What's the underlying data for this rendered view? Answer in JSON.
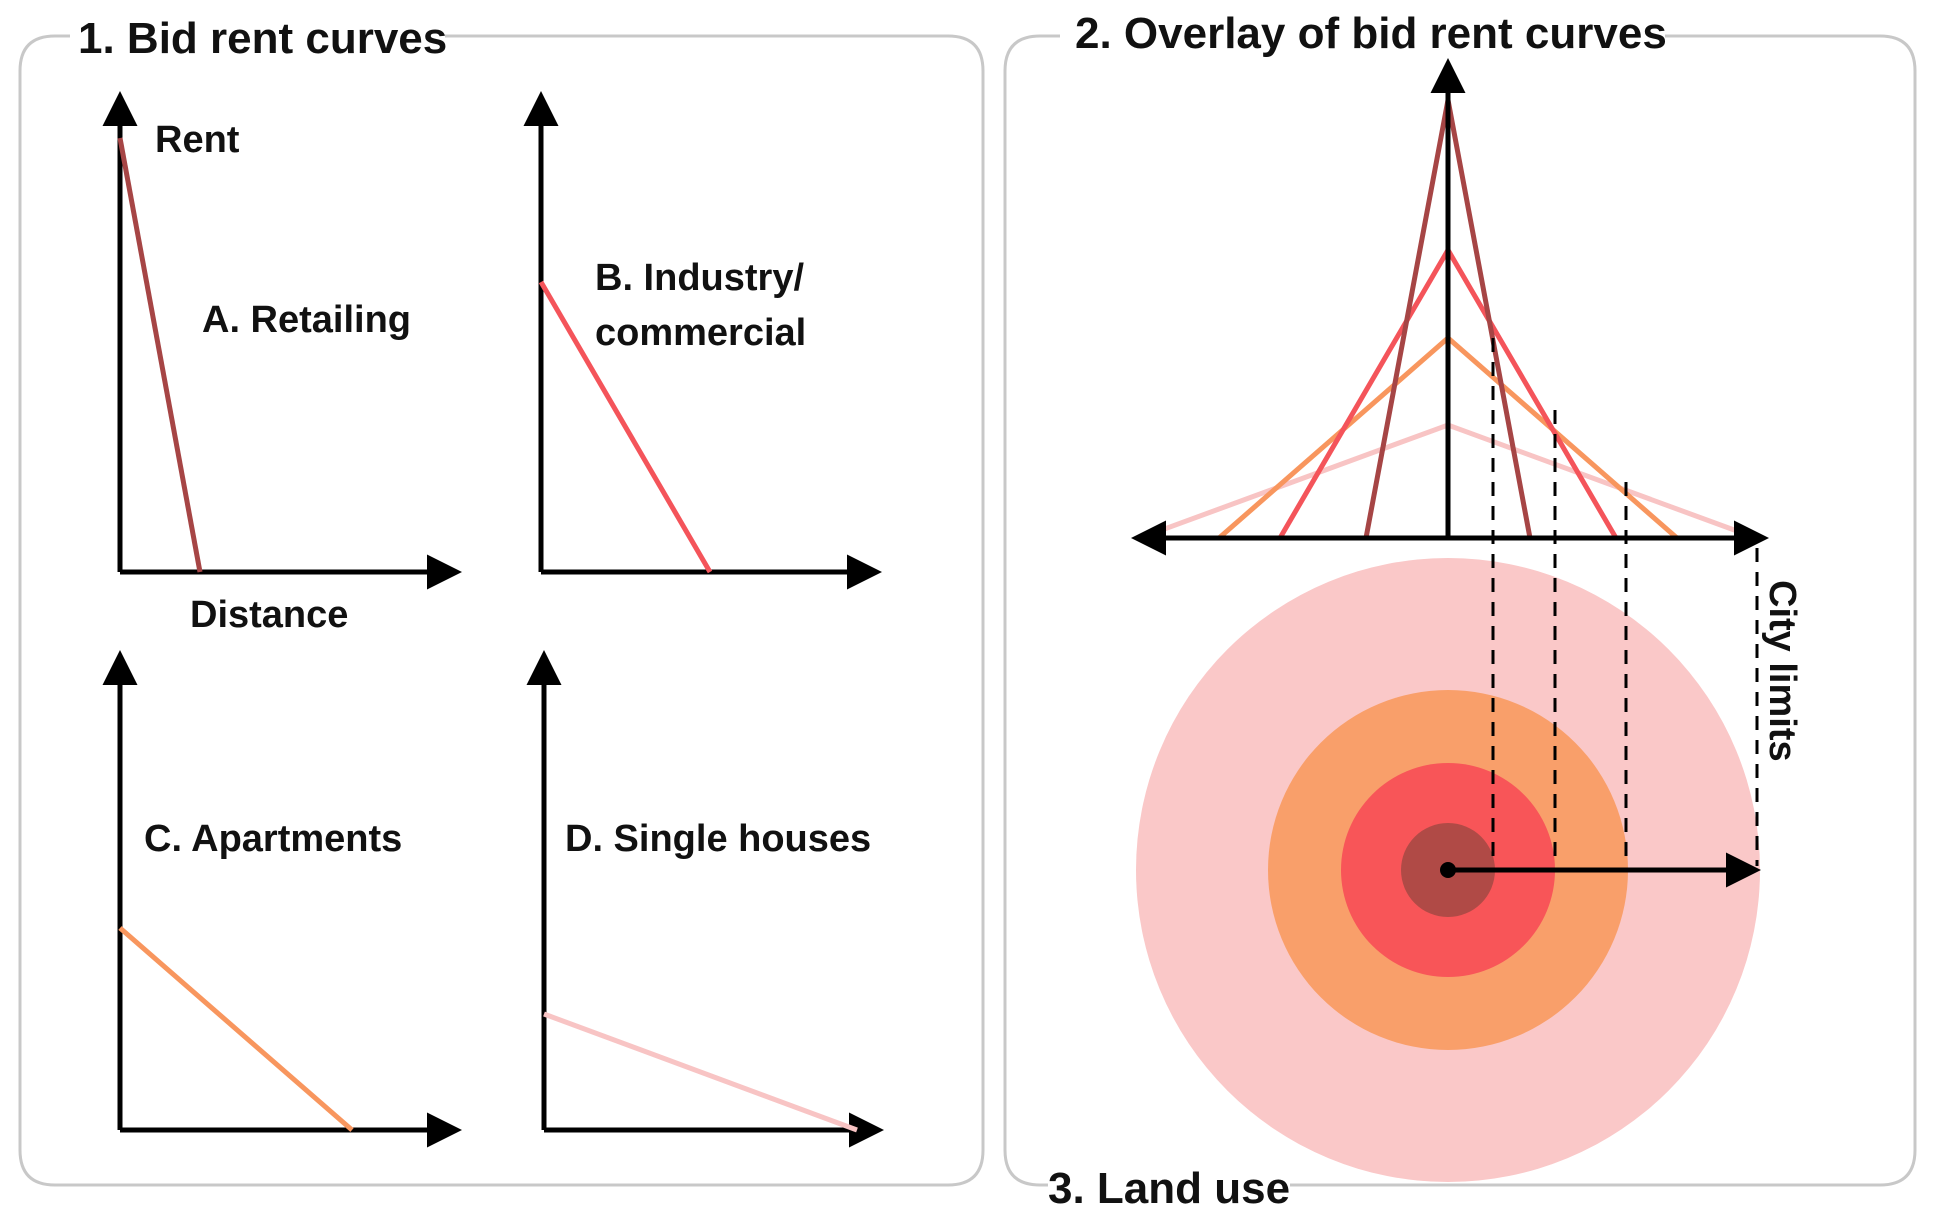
{
  "panels": {
    "bid_rent_curves": {
      "title": "1. Bid rent curves"
    },
    "overlay": {
      "title": "2. Overlay of bid rent curves"
    },
    "land_use": {
      "title": "3. Land use"
    }
  },
  "axes": {
    "y_label": "Rent",
    "x_label": "Distance"
  },
  "curves": [
    {
      "key": "retailing",
      "label": "A. Retailing",
      "color": "#a64545"
    },
    {
      "key": "industry",
      "label_line1": "B. Industry/",
      "label_line2": "commercial",
      "color": "#f4545a"
    },
    {
      "key": "apartments",
      "label": "C. Apartments",
      "color": "#f8965e"
    },
    {
      "key": "single_houses",
      "label": "D. Single houses",
      "color": "#f8c4c4"
    }
  ],
  "city_limits_label": "City limits",
  "colors": {
    "retailing": "#a64545",
    "industry": "#f4545a",
    "apartments": "#f8965e",
    "single_houses": "#f8c4c4",
    "ring_outer": "#fac8c8",
    "ring_apartments": "#f99f6a",
    "ring_industry": "#f85558",
    "ring_core": "#b04a46",
    "frame": "#c8c8c8",
    "axis": "#000000"
  }
}
